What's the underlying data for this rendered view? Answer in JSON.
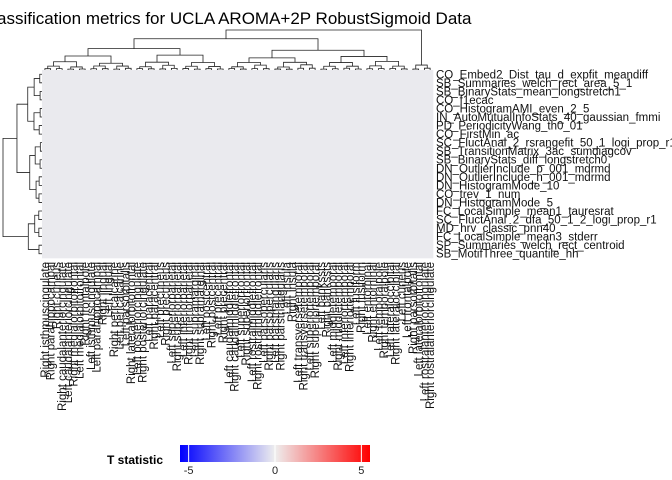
{
  "chart_data": {
    "type": "heatmap",
    "title": "assification metrics for UCLA AROMA+2P RobustSigmoid Data",
    "row_labels": [
      "CO_Embed2_Dist_tau_d_expfit_meandiff",
      "SB_Summaries_welch_rect_area_5_1",
      "SB_BinaryStats_mean_longstretch1",
      "CO_f1ecac",
      "CO_HistogramAMI_even_2_5",
      "IN_AutoMutualInfoStats_40_gaussian_fmmi",
      "PD_PeriodicityWang_th0_01",
      "CO_FirstMin_ac",
      "SC_FluctAnal_2_rsrangefit_50_1_logi_prop_r1",
      "SB_TransitionMatrix_3ac_sumdiagcov",
      "SB_BinaryStats_diff_longstretch0",
      "DN_OutlierInclude_p_001_mdrmd",
      "DN_OutlierInclude_n_001_mdrmd",
      "DN_HistogramMode_10",
      "CO_trev_1_num",
      "DN_HistogramMode_5",
      "FC_LocalSimple_mean1_tauresrat",
      "SC_FluctAnal_2_dfa_50_1_2_logi_prop_r1",
      "MD_hrv_classic_pnn40",
      "FC_LocalSimple_mean3_stderr",
      "SP_Summaries_welch_rect_centroid",
      "SB_MotifThree_quantile_hh"
    ],
    "column_labels": [
      "Right isthmuscingulate",
      "Right parahippocampal",
      "Right cuneus",
      "Right caudalanteriorcingulate",
      "Left caudalanteriorcingulate",
      "Right medialorbitofrontal",
      "Left medialorbitofrontal",
      "Right frontalpole",
      "Left isthmuscingulate",
      "Left parahippocampal",
      "Right lingual",
      "Left lingual",
      "Right pericalcarine",
      "Left pericalcarine",
      "Left parsorbitalis",
      "Right lateralorbitofrontal",
      "Left posteriorcingulate",
      "Right posteriorcingulate",
      "Left paracentral",
      "Right paracentral",
      "Left precuneus",
      "Right precuneus",
      "Left superiorparietal",
      "Right superiorparietal",
      "Left inferiorparietal",
      "Right inferiorparietal",
      "Left supramarginal",
      "Right supramarginal",
      "Left postcentral",
      "Right postcentral",
      "Left precentral",
      "Right precentral",
      "Left caudalmiddlefrontal",
      "Right caudalmiddlefrontal",
      "Left superiorfrontal",
      "Right superiorfrontal",
      "Left rostralmiddlefrontal",
      "Right rostralmiddlefrontal",
      "Left parsopercularis",
      "Right parsopercularis",
      "Left parstriangularis",
      "Right parstriangularis",
      "Left insula",
      "Right insula",
      "Left transversetemporal",
      "Right transversetemporal",
      "Left superiortemporal",
      "Right superiortemporal",
      "Left bankssts",
      "Right bankssts",
      "Left middletemporal",
      "Right middletemporal",
      "Left inferiortemporal",
      "Right inferiortemporal",
      "Left fusiform",
      "Right fusiform",
      "Left entorhinal",
      "Right entorhinal",
      "Left temporalpole",
      "Right temporalpole",
      "Left lateraloccipital",
      "Right lateraloccipital",
      "Left cuneus",
      "Left frontalpole",
      "Right parsorbitalis",
      "Left lateralorbitofrontal",
      "Left rostralanteriorcingulate",
      "Right rostralanteriorcingulate"
    ],
    "value_range": [
      -5.5,
      5.5
    ],
    "cell_value_estimate": -0.1,
    "legend": {
      "title": "T statistic",
      "ticks": [
        -5,
        0,
        5
      ],
      "colors": [
        "#0000ff",
        "#eeeeee",
        "#ff0000"
      ],
      "placement": "bottom"
    },
    "row_dendrogram": true,
    "column_dendrogram": true
  }
}
